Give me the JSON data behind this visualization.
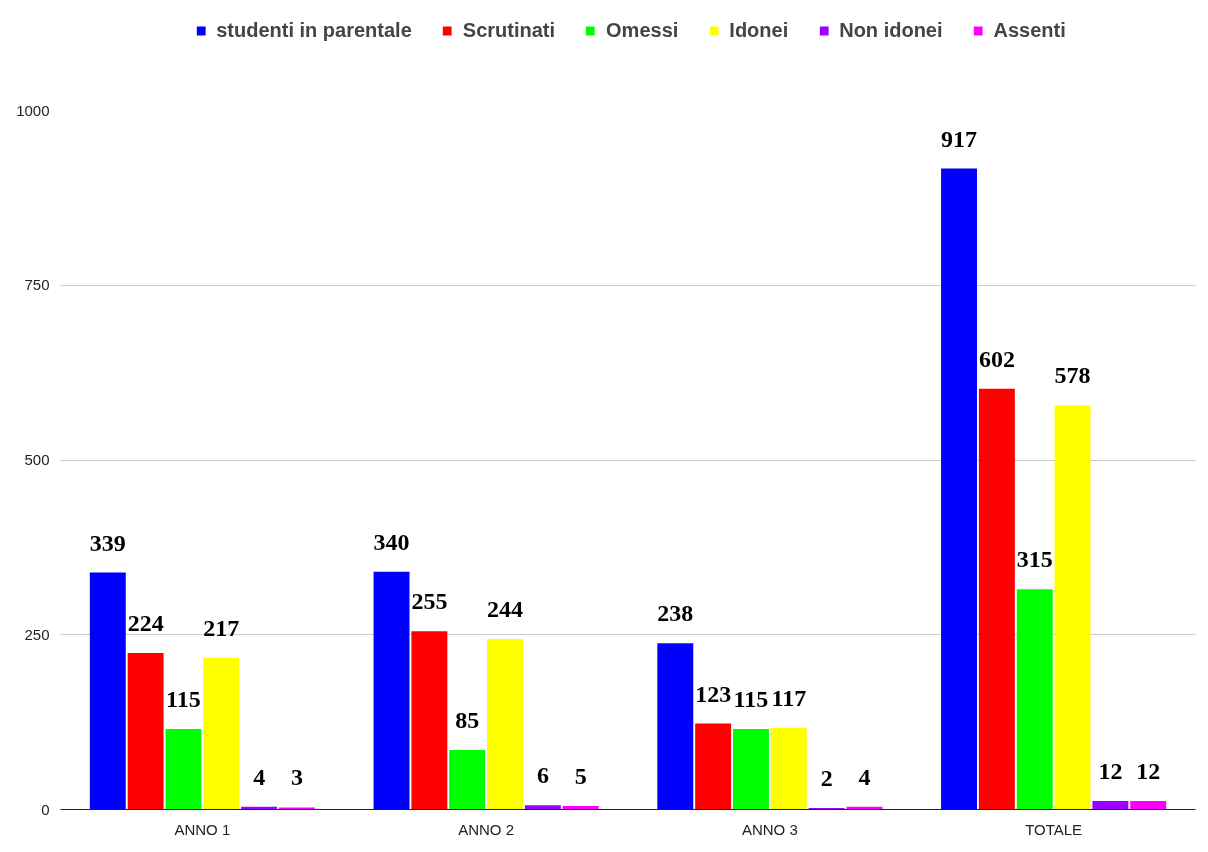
{
  "chart_data": {
    "type": "bar",
    "categories": [
      "ANNO 1",
      "ANNO 2",
      "ANNO 3",
      "TOTALE"
    ],
    "series": [
      {
        "name": "studenti in parentale",
        "color": "#0000ff",
        "values": [
          339,
          340,
          238,
          917
        ]
      },
      {
        "name": "Scrutinati",
        "color": "#ff0000",
        "values": [
          224,
          255,
          123,
          602
        ]
      },
      {
        "name": "Omessi",
        "color": "#00ff00",
        "values": [
          115,
          85,
          115,
          315
        ]
      },
      {
        "name": "Idonei",
        "color": "#ffff00",
        "values": [
          217,
          244,
          117,
          578
        ]
      },
      {
        "name": "Non idonei",
        "color": "#9900ff",
        "values": [
          4,
          6,
          2,
          12
        ]
      },
      {
        "name": "Assenti",
        "color": "#ff00ff",
        "values": [
          3,
          5,
          4,
          12
        ]
      }
    ],
    "ylim": [
      0,
      1000
    ],
    "yticks": [
      0,
      250,
      500,
      750,
      1000
    ],
    "grid": "y",
    "legend": "top",
    "data_labels": true
  }
}
